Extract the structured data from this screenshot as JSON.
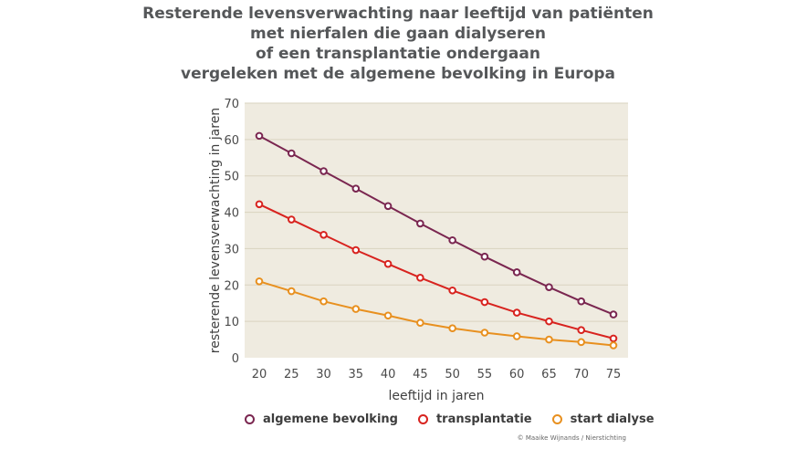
{
  "title_lines": [
    "Resterende levensverwachting naar leeftijd van patiënten",
    "met nierfalen die gaan dialyseren",
    "of een transplantatie ondergaan",
    "vergeleken met de algemene bevolking in Europa"
  ],
  "credit": "© Maaike Wijnands / Nierstichting",
  "colors": {
    "plot_background": "#efebe0",
    "gridline": "#dad3bf",
    "algemene": "#7a2650",
    "transplantatie": "#d8231f",
    "dialyse": "#e8901f"
  },
  "chart_data": {
    "type": "line",
    "xlabel": "leeftijd in jaren",
    "ylabel": "resterende levensverwachting  in jaren",
    "x": [
      20,
      25,
      30,
      35,
      40,
      45,
      50,
      55,
      60,
      65,
      70,
      75
    ],
    "x_ticks": [
      "20",
      "25",
      "30",
      "35",
      "40",
      "45",
      "50",
      "55",
      "60",
      "65",
      "70",
      "75"
    ],
    "y_ticks": [
      "0",
      "10",
      "20",
      "30",
      "40",
      "50",
      "60",
      "70"
    ],
    "ylim": [
      0,
      70
    ],
    "xlim": [
      20,
      75
    ],
    "grid": "horizontal",
    "legend_position": "bottom",
    "series": [
      {
        "name": "algemene bevolking",
        "color": "#7a2650",
        "values": [
          61.0,
          56.2,
          51.3,
          46.5,
          41.7,
          36.9,
          32.3,
          27.8,
          23.5,
          19.4,
          15.5,
          11.9
        ]
      },
      {
        "name": "transplantatie",
        "color": "#d8231f",
        "values": [
          42.2,
          38.0,
          33.8,
          29.6,
          25.8,
          22.0,
          18.5,
          15.3,
          12.4,
          10.0,
          7.6,
          5.3
        ]
      },
      {
        "name": "start dialyse",
        "color": "#e8901f",
        "values": [
          21.0,
          18.3,
          15.5,
          13.4,
          11.6,
          9.6,
          8.1,
          6.9,
          5.9,
          5.0,
          4.3,
          3.4
        ]
      }
    ]
  }
}
